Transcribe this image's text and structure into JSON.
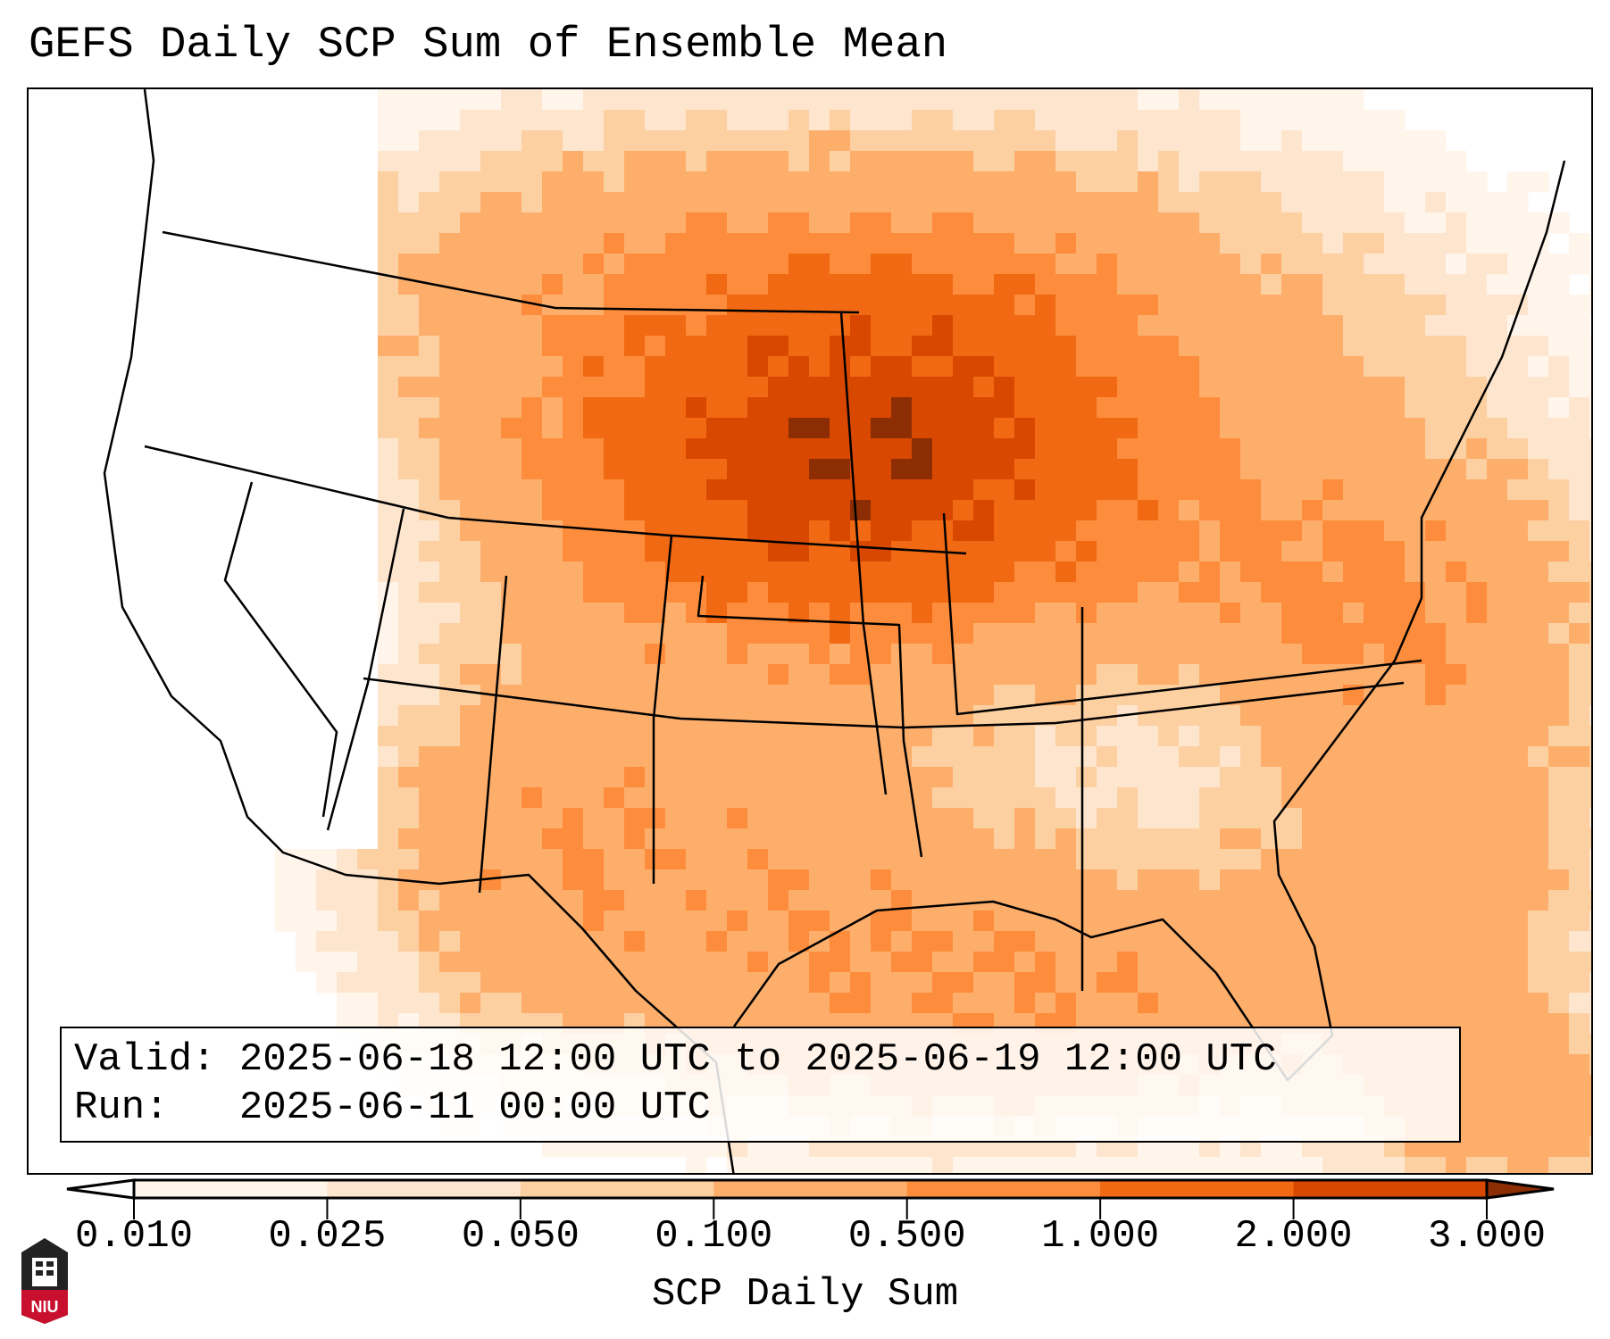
{
  "title": "GEFS Daily SCP Sum of Ensemble Mean",
  "info": {
    "valid_label": "Valid:",
    "valid_value": "2025-06-18 12:00 UTC to 2025-06-19 12:00 UTC",
    "run_label": "Run:",
    "run_value": "2025-06-11 00:00 UTC"
  },
  "colorbar": {
    "label": "SCP Daily Sum",
    "ticks": [
      "0.010",
      "0.025",
      "0.050",
      "0.100",
      "0.500",
      "1.000",
      "2.000",
      "3.000"
    ],
    "colors": [
      "#fff5eb",
      "#fee6ce",
      "#fdd0a2",
      "#fdae6b",
      "#fd8d3c",
      "#f16913",
      "#d94801",
      "#8c2d04"
    ],
    "under_color": "#ffffff"
  },
  "logo": {
    "text": "NIU",
    "color": "#c8102e"
  }
}
